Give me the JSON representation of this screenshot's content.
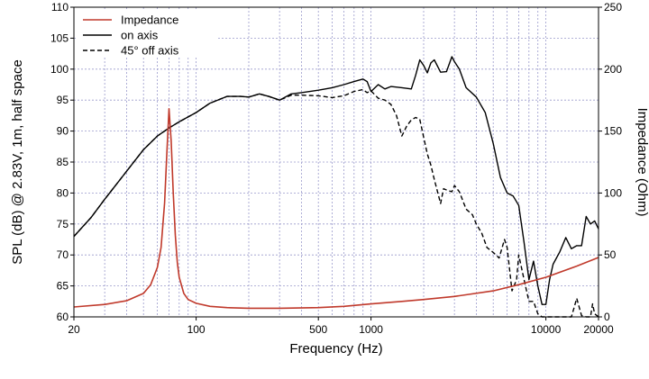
{
  "chart_data": {
    "type": "line",
    "xlabel": "Frequency (Hz)",
    "ylabel_left": "SPL (dB) @ 2.83V, 1m, half space",
    "ylabel_right": "Impedance (Ohm)",
    "x_scale": "log",
    "xlim": [
      20,
      20000
    ],
    "ylim_left": [
      60,
      110
    ],
    "ylim_right": [
      0,
      250
    ],
    "grid": true,
    "legend_position": "top-left",
    "x_tick_labels": [
      "20",
      "100",
      "500",
      "1000",
      "10000",
      "20000"
    ],
    "x_tick_values": [
      20,
      100,
      500,
      1000,
      10000,
      20000
    ],
    "y_left_ticks": [
      60,
      65,
      70,
      75,
      80,
      85,
      90,
      95,
      100,
      105,
      110
    ],
    "y_right_ticks": [
      0,
      50,
      100,
      150,
      200,
      250
    ],
    "series": [
      {
        "name": "Impedance",
        "axis": "right",
        "color": "#c0392b",
        "style": "solid",
        "x": [
          20,
          30,
          40,
          50,
          55,
          60,
          63,
          66,
          68,
          70,
          72,
          74,
          76,
          78,
          80,
          85,
          90,
          100,
          120,
          150,
          200,
          300,
          500,
          700,
          1000,
          1500,
          2000,
          3000,
          5000,
          7000,
          10000,
          15000,
          20000
        ],
        "y": [
          8,
          10,
          13,
          19,
          26,
          40,
          56,
          92,
          132,
          168,
          142,
          100,
          66,
          44,
          32,
          19,
          14,
          11,
          8.5,
          7.5,
          7,
          7,
          7.5,
          8.5,
          10.5,
          12.5,
          14,
          16.5,
          21,
          26,
          32,
          41,
          48
        ]
      },
      {
        "name": "on axis",
        "axis": "left",
        "color": "#000000",
        "style": "solid",
        "x": [
          20,
          25,
          30,
          40,
          50,
          60,
          70,
          80,
          100,
          120,
          150,
          180,
          200,
          230,
          260,
          300,
          350,
          400,
          500,
          600,
          700,
          800,
          900,
          950,
          1000,
          1100,
          1200,
          1300,
          1500,
          1700,
          1800,
          1900,
          2000,
          2100,
          2200,
          2300,
          2500,
          2700,
          2900,
          3000,
          3200,
          3500,
          4000,
          4500,
          5000,
          5500,
          6000,
          6500,
          7000,
          7500,
          8000,
          8500,
          9000,
          9500,
          10000,
          10500,
          11000,
          12000,
          13000,
          14000,
          15000,
          16000,
          17000,
          18000,
          19000,
          20000
        ],
        "y": [
          73,
          76,
          79,
          83.5,
          87,
          89.2,
          90.5,
          91.5,
          93,
          94.5,
          95.6,
          95.6,
          95.5,
          96,
          95.6,
          95,
          96,
          96.2,
          96.6,
          97,
          97.5,
          98,
          98.4,
          98,
          96.4,
          97.5,
          96.8,
          97.2,
          97,
          96.8,
          99,
          101.5,
          100.6,
          99.4,
          101,
          101.5,
          99.5,
          99.6,
          102,
          101.2,
          100,
          97,
          95.5,
          93,
          88,
          82.5,
          80,
          79.5,
          78,
          72,
          66,
          69,
          65,
          62,
          62,
          66,
          68.5,
          70.5,
          72.8,
          71,
          71.5,
          71.5,
          76.2,
          75,
          75.5,
          74.2
        ]
      },
      {
        "name": "45° off axis",
        "axis": "left",
        "color": "#000000",
        "style": "dashed",
        "x": [
          20,
          25,
          30,
          40,
          50,
          60,
          70,
          80,
          100,
          120,
          150,
          180,
          200,
          230,
          260,
          300,
          350,
          400,
          500,
          600,
          700,
          800,
          900,
          950,
          1000,
          1100,
          1200,
          1300,
          1400,
          1500,
          1600,
          1700,
          1800,
          1900,
          2000,
          2100,
          2200,
          2300,
          2500,
          2600,
          2700,
          2900,
          3000,
          3200,
          3500,
          3800,
          4000,
          4300,
          4600,
          5000,
          5400,
          5800,
          6000,
          6400,
          6800,
          7000,
          7500,
          8000,
          8500,
          9000,
          9500,
          10000,
          11000,
          12000,
          13000,
          14000,
          14500,
          15000,
          16000,
          17000,
          18000,
          18500,
          19000,
          20000
        ],
        "y": [
          73,
          76,
          79,
          83.5,
          87,
          89.2,
          90.5,
          91.5,
          93,
          94.5,
          95.6,
          95.6,
          95.5,
          96,
          95.6,
          95,
          95.8,
          95.8,
          95.7,
          95.4,
          95.7,
          96.4,
          96.7,
          96.2,
          96.5,
          95.3,
          95,
          94.3,
          92.5,
          89.2,
          90.8,
          91.8,
          92.2,
          91.9,
          89,
          86.3,
          84.5,
          82.2,
          78.3,
          80.7,
          80.5,
          80.2,
          81.2,
          80.2,
          77.4,
          76.5,
          75,
          73.5,
          71.2,
          70.4,
          69.5,
          72.5,
          71.2,
          64.2,
          66,
          70,
          66,
          62.5,
          62.5,
          60.5,
          60,
          60,
          60,
          60,
          60,
          60,
          61.5,
          63,
          60.2,
          60,
          60,
          62.1,
          60.5,
          60
        ]
      }
    ]
  }
}
